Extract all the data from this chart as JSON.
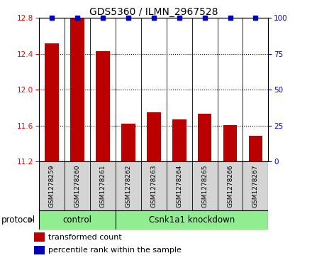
{
  "title": "GDS5360 / ILMN_2967528",
  "samples": [
    "GSM1278259",
    "GSM1278260",
    "GSM1278261",
    "GSM1278262",
    "GSM1278263",
    "GSM1278264",
    "GSM1278265",
    "GSM1278266",
    "GSM1278267"
  ],
  "transformed_counts": [
    12.52,
    12.795,
    12.43,
    11.62,
    11.75,
    11.665,
    11.73,
    11.605,
    11.485
  ],
  "percentile_ranks": [
    100,
    100,
    100,
    100,
    100,
    100,
    100,
    100,
    100
  ],
  "ylim_left": [
    11.2,
    12.8
  ],
  "yticks_left": [
    11.2,
    11.6,
    12.0,
    12.4,
    12.8
  ],
  "yticks_right": [
    0,
    25,
    50,
    75,
    100
  ],
  "bar_color": "#bb0000",
  "dot_color": "#0000bb",
  "bar_width": 0.55,
  "title_fontsize": 10,
  "tick_fontsize": 7.5,
  "sample_fontsize": 6.5,
  "legend_fontsize": 8,
  "protocol_fontsize": 8.5,
  "legend_bar_label": "transformed count",
  "legend_dot_label": "percentile rank within the sample",
  "bg_gray": "#d4d4d4",
  "bg_green": "#90ee90"
}
